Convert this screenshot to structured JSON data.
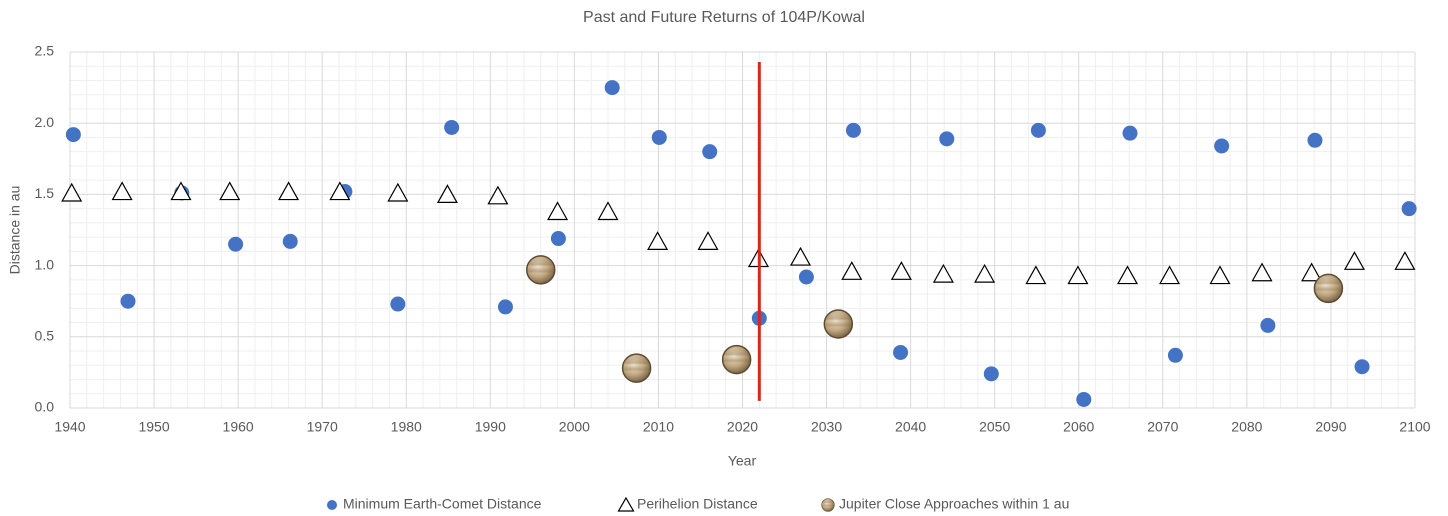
{
  "chart_data": {
    "type": "scatter",
    "title": "Past and Future Returns of 104P/Kowal",
    "x_label": "Year",
    "y_label": "Distance in au",
    "xlim": [
      1940,
      2100
    ],
    "ylim": [
      0,
      2.5
    ],
    "xticks": [
      1940,
      1950,
      1960,
      1970,
      1980,
      1990,
      2000,
      2010,
      2020,
      2030,
      2040,
      2050,
      2060,
      2070,
      2080,
      2090,
      2100
    ],
    "yticks": [
      {
        "value": 0,
        "label": "0.0"
      },
      0.5,
      {
        "value": 1,
        "label": "1.0"
      },
      1.5,
      {
        "value": 2,
        "label": "2.0"
      },
      2.5
    ],
    "grid": true,
    "minor_grid": true,
    "legend": "bottom",
    "series": [
      {
        "name": "Minimum Earth-Comet Distance",
        "color": "#4472c4",
        "marker": "circle",
        "x": [
          1940.4,
          1946.9,
          1953.3,
          1959.7,
          1966.2,
          1972.7,
          1979.0,
          1985.4,
          1991.8,
          1998.1,
          2004.5,
          2010.1,
          2016.1,
          2022.0,
          2027.6,
          2033.2,
          2038.8,
          2044.3,
          2049.6,
          2055.2,
          2060.6,
          2066.1,
          2071.5,
          2077.0,
          2082.5,
          2088.1,
          2093.7,
          2099.3
        ],
        "values": [
          1.92,
          0.75,
          1.51,
          1.15,
          1.17,
          1.52,
          0.73,
          1.97,
          0.71,
          1.19,
          2.25,
          1.9,
          1.8,
          0.63,
          0.92,
          1.95,
          0.39,
          1.89,
          0.24,
          1.95,
          0.06,
          1.93,
          0.37,
          1.84,
          0.58,
          1.88,
          0.29,
          1.4
        ]
      },
      {
        "name": "Perihelion Distance",
        "color": "#000000",
        "marker": "triangle",
        "x": [
          1940.2,
          1946.2,
          1953.2,
          1959.0,
          1966.0,
          1972.1,
          1979.0,
          1984.9,
          1990.9,
          1998.0,
          2004.0,
          2009.9,
          2015.9,
          2021.9,
          2026.9,
          2033.0,
          2038.9,
          2043.9,
          2048.8,
          2054.9,
          2059.9,
          2065.8,
          2070.8,
          2076.8,
          2081.8,
          2087.7,
          2092.8,
          2098.8
        ],
        "values": [
          1.51,
          1.52,
          1.52,
          1.52,
          1.52,
          1.52,
          1.51,
          1.5,
          1.49,
          1.38,
          1.38,
          1.17,
          1.17,
          1.05,
          1.06,
          0.96,
          0.96,
          0.94,
          0.94,
          0.93,
          0.93,
          0.93,
          0.93,
          0.93,
          0.95,
          0.95,
          1.03,
          1.03
        ]
      },
      {
        "name": "Jupiter Close Approaches within 1 au",
        "color": "#a08a68",
        "marker": "jupiter",
        "x": [
          1996.0,
          2007.4,
          2019.3,
          2031.4,
          2089.7
        ],
        "values": [
          0.97,
          0.28,
          0.34,
          0.59,
          0.84
        ]
      }
    ],
    "vline": {
      "x": 2022,
      "y": [
        0.05,
        2.43
      ],
      "color": "#d9261c"
    }
  }
}
